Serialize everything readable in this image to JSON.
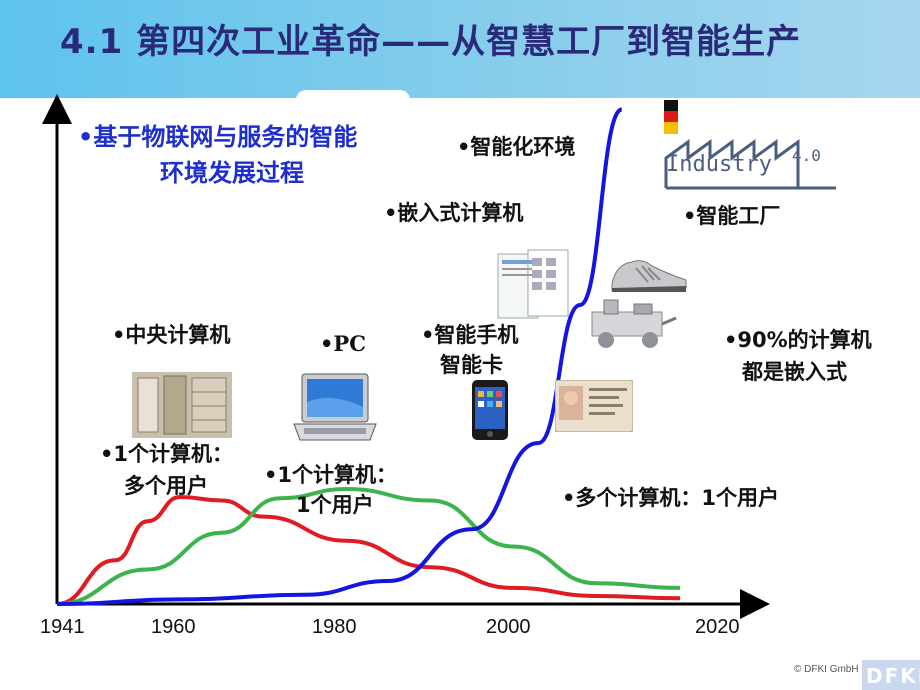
{
  "title": "4.1 第四次工业革命——从智慧工厂到智能生产",
  "heading": {
    "line1": "•基于物联网与服务的智能",
    "line2": "环境发展过程"
  },
  "labels": {
    "smart_env": "•智能化环境",
    "embedded": "•嵌入式计算机",
    "smart_factory": "•智能工厂",
    "mainframe": "•中央计算机",
    "pc": "•PC",
    "smartphone_line1": "•智能手机",
    "smartphone_line2": "智能卡",
    "ninety_line1": "•90%的计算机",
    "ninety_line2": "都是嵌入式",
    "one_many_line1": "•1个计算机：",
    "one_many_line2": "多个用户",
    "one_one_line1": "•1个计算机：",
    "one_one_line2": "1个用户",
    "many_one": "•多个计算机：1个用户"
  },
  "logo": {
    "industry_text": "Industry",
    "industry_version": "4.0",
    "footer_logo": "DFKI"
  },
  "credit": "© DFKI GmbH",
  "chart_data": {
    "type": "line",
    "x": [
      1941,
      1960,
      1980,
      2000,
      2020
    ],
    "x_ticks": [
      "1941",
      "1960",
      "1980",
      "2000",
      "2020"
    ],
    "series": [
      {
        "color": "#e11b22",
        "label": "•1个计算机：多个用户",
        "points": [
          [
            1941,
            0
          ],
          [
            1950,
            0.38
          ],
          [
            1955,
            0.72
          ],
          [
            1960,
            0.93
          ],
          [
            1965,
            0.9
          ],
          [
            1970,
            0.76
          ],
          [
            1980,
            0.55
          ],
          [
            1990,
            0.32
          ],
          [
            2000,
            0.14
          ],
          [
            2010,
            0.07
          ],
          [
            2020,
            0.05
          ]
        ]
      },
      {
        "color": "#3cb44b",
        "label": "•1个计算机：1个用户",
        "points": [
          [
            1941,
            0
          ],
          [
            1955,
            0.3
          ],
          [
            1965,
            0.62
          ],
          [
            1972,
            0.92
          ],
          [
            1980,
            1.0
          ],
          [
            1990,
            0.9
          ],
          [
            2000,
            0.5
          ],
          [
            2010,
            0.18
          ],
          [
            2020,
            0.14
          ]
        ]
      },
      {
        "color": "#1515e0",
        "label": "•多个计算机：1个用户",
        "points": [
          [
            1941,
            0
          ],
          [
            1960,
            0.04
          ],
          [
            1975,
            0.08
          ],
          [
            1985,
            0.2
          ],
          [
            1995,
            0.65
          ],
          [
            2003,
            1.4
          ],
          [
            2008,
            2.6
          ],
          [
            2013,
            4.3
          ]
        ]
      }
    ],
    "colors": {
      "red": "#e11b22",
      "green": "#3cb44b",
      "blue": "#1515e0"
    }
  }
}
